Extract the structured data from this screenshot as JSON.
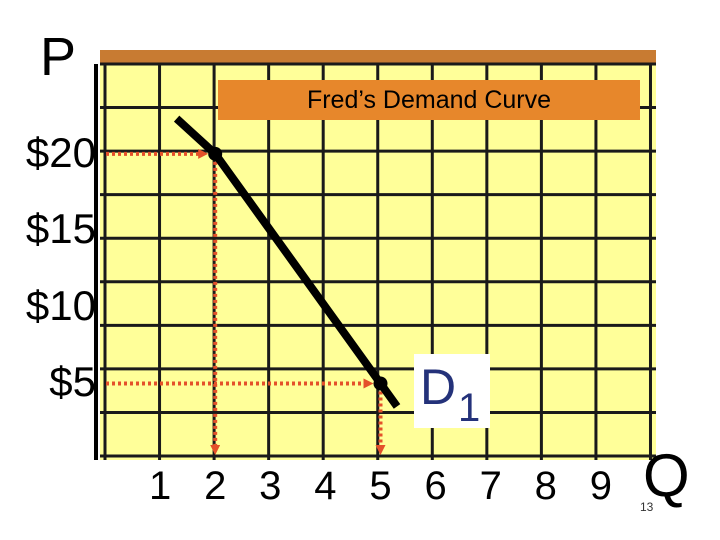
{
  "chart_data": {
    "type": "line",
    "title": "Fred’s Demand Curve",
    "xlabel": "Q",
    "ylabel": "P",
    "x_ticks": [
      "1",
      "2",
      "3",
      "4",
      "5",
      "6",
      "7",
      "8",
      "9"
    ],
    "y_ticks": [
      "$5",
      "$10",
      "$15",
      "$20"
    ],
    "xlim": [
      0,
      10
    ],
    "ylim": [
      0,
      25
    ],
    "grid": true,
    "series": [
      {
        "name": "D1",
        "x": [
          1.3,
          2,
          5,
          5.3
        ],
        "y": [
          22.3,
          20,
          5,
          3.5
        ]
      }
    ],
    "highlight_points": [
      {
        "x": 2,
        "y": 20
      },
      {
        "x": 5,
        "y": 5
      }
    ],
    "curve_label": {
      "main": "D",
      "sub": "1"
    },
    "slide_number": "13"
  },
  "colors": {
    "plot_background": "#FFFF99",
    "grid": "#1a1a1a",
    "frame": "#C87B32",
    "title_box": "#E7872B",
    "guide_lines": "#E4512A",
    "curve": "#000000",
    "curve_label": "#24327A"
  }
}
